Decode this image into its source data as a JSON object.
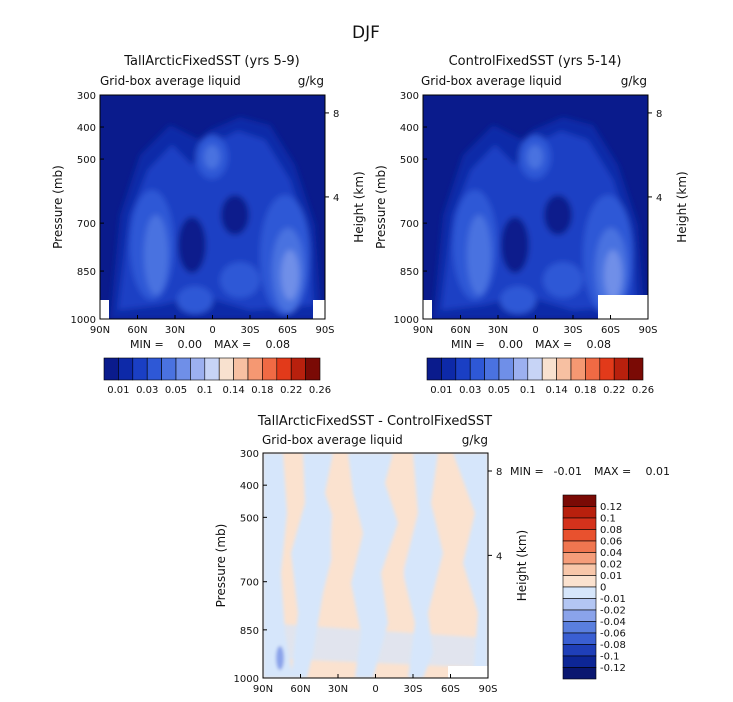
{
  "page_title": "DJF",
  "chart_data": [
    {
      "type": "heatmap",
      "title": "TallArcticFixedSST (yrs 5-9)",
      "subtitle_left": "Grid-box average liquid",
      "subtitle_right": "g/kg",
      "ylabel": "Pressure (mb)",
      "y2label": "Height (km)",
      "x_ticks": [
        "90N",
        "60N",
        "30N",
        "0",
        "30S",
        "60S",
        "90S"
      ],
      "y_ticks": [
        "300",
        "400",
        "500",
        "700",
        "850",
        "1000"
      ],
      "y2_ticks": [
        "8",
        "4"
      ],
      "stats": {
        "min_label": "MIN =",
        "min": "0.00",
        "max_label": "MAX =",
        "max": "0.08"
      },
      "colorbar_ticks": [
        "0.01",
        "0.03",
        "0.05",
        "0.1",
        "0.14",
        "0.18",
        "0.22",
        "0.26"
      ]
    },
    {
      "type": "heatmap",
      "title": "ControlFixedSST (yrs 5-14)",
      "subtitle_left": "Grid-box average liquid",
      "subtitle_right": "g/kg",
      "ylabel": "Pressure (mb)",
      "y2label": "Height (km)",
      "x_ticks": [
        "90N",
        "60N",
        "30N",
        "0",
        "30S",
        "60S",
        "90S"
      ],
      "y_ticks": [
        "300",
        "400",
        "500",
        "700",
        "850",
        "1000"
      ],
      "y2_ticks": [
        "8",
        "4"
      ],
      "stats": {
        "min_label": "MIN =",
        "min": "0.00",
        "max_label": "MAX =",
        "max": "0.08"
      },
      "colorbar_ticks": [
        "0.01",
        "0.03",
        "0.05",
        "0.1",
        "0.14",
        "0.18",
        "0.22",
        "0.26"
      ]
    },
    {
      "type": "heatmap",
      "title": "TallArcticFixedSST - ControlFixedSST",
      "subtitle_left": "Grid-box average liquid",
      "subtitle_right": "g/kg",
      "ylabel": "Pressure (mb)",
      "y2label": "Height (km)",
      "x_ticks": [
        "90N",
        "60N",
        "30N",
        "0",
        "30S",
        "60S",
        "90S"
      ],
      "y_ticks": [
        "300",
        "400",
        "500",
        "700",
        "850",
        "1000"
      ],
      "y2_ticks": [
        "8",
        "4"
      ],
      "stats": {
        "min_label": "MIN =",
        "min": "-0.01",
        "max_label": "MAX =",
        "max": "0.01"
      },
      "colorbar_ticks": [
        "0.12",
        "0.1",
        "0.08",
        "0.06",
        "0.04",
        "0.02",
        "0.01",
        "0",
        "-0.01",
        "-0.02",
        "-0.04",
        "-0.06",
        "-0.08",
        "-0.1",
        "-0.12"
      ]
    }
  ],
  "colors": {
    "abs_scale": [
      "#0a1b8c",
      "#0d29a8",
      "#1a3fc4",
      "#2e58d6",
      "#4a72e0",
      "#6f8fe8",
      "#9cb0f0",
      "#c7d4f6",
      "#f8e1cf",
      "#f7c0a2",
      "#f59872",
      "#f06a44",
      "#e23a1a",
      "#b8200d",
      "#7a0a05"
    ],
    "diff_scale": [
      "#7a0a05",
      "#b8200d",
      "#d4321c",
      "#e8512e",
      "#f07650",
      "#f59d7a",
      "#f8c7aa",
      "#fbe2cf",
      "#d6e6fb",
      "#b3c6f3",
      "#8aa3ea",
      "#5a7fde",
      "#3a5fd2",
      "#1f3fb8",
      "#0d2696",
      "#0a1770"
    ]
  }
}
